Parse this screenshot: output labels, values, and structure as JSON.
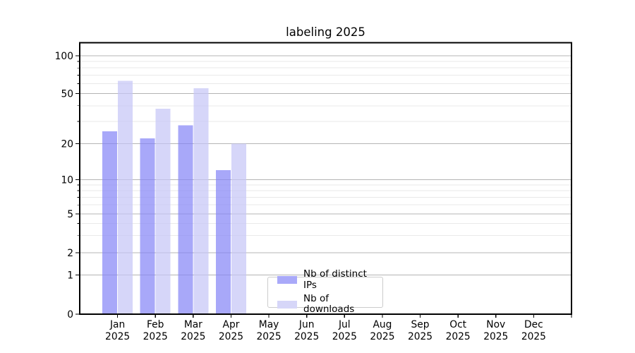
{
  "chart_data": {
    "type": "bar",
    "title": "labeling 2025",
    "categories": [
      "Jan",
      "Feb",
      "Mar",
      "Apr",
      "May",
      "Jun",
      "Jul",
      "Aug",
      "Sep",
      "Oct",
      "Nov",
      "Dec"
    ],
    "x_tick_year": "2025",
    "series": [
      {
        "name": "Nb of distinct IPs",
        "values": [
          25,
          22,
          28,
          12,
          null,
          null,
          null,
          null,
          null,
          null,
          null,
          null
        ],
        "color": "#8383f6",
        "alpha": 0.7,
        "legend_swatch": "#a9a9f9"
      },
      {
        "name": "Nb of downloads",
        "values": [
          63,
          38,
          55,
          20,
          null,
          null,
          null,
          null,
          null,
          null,
          null,
          null
        ],
        "color": "#c4c4f7",
        "alpha": 0.7,
        "legend_swatch": "#d6d6f8"
      }
    ],
    "yscale": "symlog",
    "y_major_ticks": [
      0,
      1,
      2,
      5,
      10,
      20,
      50,
      100
    ],
    "y_minor_ticks": [
      3,
      4,
      6,
      7,
      8,
      9,
      30,
      40,
      60,
      70,
      80,
      90
    ],
    "ylim": [
      0,
      128
    ],
    "grid": true,
    "legend_position": "lower-center-inside"
  },
  "colors": {
    "background": "#ffffff",
    "axis": "#000000",
    "text": "#000000",
    "grid_major": "#b4b4b4",
    "grid_minor": "#e9e9e9",
    "legend_border": "#cccccc"
  }
}
